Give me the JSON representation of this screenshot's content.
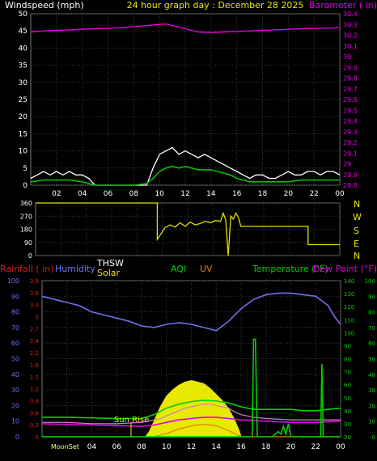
{
  "colors": {
    "background": "#000000",
    "plot_bg": "#000000",
    "grid": "#3a3a3a",
    "frame": "#7a7a7a",
    "wind": "#ffffff",
    "wind_avg": "#00c000",
    "barometer": "#e000e0",
    "direction": "#e0e000",
    "humidity": "#7070f0",
    "rain": "#d02020",
    "thsw": "#ffffff",
    "solar": "#e8e800",
    "aqi": "#00d000",
    "uv": "#e08000",
    "temperature": "#00d000",
    "dewpoint": "#e000e0",
    "sunrise_label": "#e8e800",
    "moon_label": "#ffff80"
  },
  "wind_panel": {
    "left_label": "Windspeed (mph)",
    "title": "24 hour graph day : December 28 2025",
    "right_label": "Barometer ( in)"
  },
  "direction_panel": {
    "compass": [
      "N",
      "W",
      "S",
      "E",
      "N"
    ]
  },
  "lower_panel": {
    "rainfall_label": "Rainfall ( in)",
    "humidity_label": "Humidity",
    "thsw_label": "THSW",
    "solar_label": "Solar",
    "aqi_label": "AQI",
    "uv_label": "UV",
    "temperature_label": "Temperature (°F)",
    "dewpoint_label": "Dew Point (°F)",
    "sunrise_annotation": "Sun Rise",
    "moonset_annotation": "MoonSet"
  },
  "chart_data": [
    {
      "type": "line",
      "name": "wind",
      "title": "24 hour graph day : December 28 2025",
      "xlabel": "",
      "ylabel": "Windspeed (mph)",
      "y2label": "Barometer ( in)",
      "x_ticks": [
        "02",
        "04",
        "06",
        "08",
        "10",
        "12",
        "14",
        "16",
        "18",
        "20",
        "22",
        "00"
      ],
      "x_range": [
        0,
        24
      ],
      "ylim": [
        0,
        50
      ],
      "y_ticks": [
        0,
        5,
        10,
        15,
        20,
        25,
        30,
        35,
        40,
        45,
        50
      ],
      "y2lim": [
        28.8,
        30.4
      ],
      "y2_ticks": [
        "28.8",
        "28.9",
        "29",
        "29.1",
        "29.2",
        "29.3",
        "29.4",
        "29.5",
        "29.6",
        "29.7",
        "29.8",
        "29.9",
        "30",
        "30.1",
        "30.2",
        "30.3",
        "30.4"
      ],
      "grid": true,
      "series": [
        {
          "key": "gust",
          "x": [
            0,
            0.5,
            1,
            1.5,
            2,
            2.5,
            3,
            3.5,
            4,
            4.5,
            5,
            5.5,
            6,
            6.5,
            7,
            7.5,
            8,
            8.5,
            9,
            9.5,
            10,
            10.5,
            11,
            11.5,
            12,
            12.5,
            13,
            13.5,
            14,
            14.5,
            15,
            15.5,
            16,
            16.5,
            17,
            17.5,
            18,
            18.5,
            19,
            19.5,
            20,
            20.5,
            21,
            21.5,
            22,
            22.5,
            23,
            23.5,
            24
          ],
          "values": [
            2,
            3,
            4,
            3,
            4,
            3,
            4,
            3,
            3,
            2,
            0,
            0,
            0,
            0,
            0,
            0,
            0,
            0,
            0,
            5,
            9,
            10,
            11,
            9,
            10,
            9,
            8,
            9,
            8,
            7,
            6,
            5,
            4,
            3,
            2,
            3,
            3,
            2,
            2,
            3,
            4,
            3,
            3,
            4,
            4,
            3,
            4,
            4,
            3
          ]
        },
        {
          "key": "average",
          "x": [
            0,
            1,
            2,
            3,
            4,
            5,
            6,
            7,
            8,
            9,
            9.5,
            10,
            10.5,
            11,
            11.5,
            12,
            12.5,
            13,
            13.5,
            14,
            14.5,
            15,
            15.5,
            16,
            17,
            18,
            19,
            20,
            21,
            22,
            23,
            24
          ],
          "values": [
            1,
            1.5,
            1.5,
            1.5,
            1,
            0,
            0,
            0,
            0,
            0.5,
            2,
            4,
            5,
            5.5,
            5,
            5.5,
            5,
            4.5,
            4.5,
            4.5,
            4,
            3.5,
            3,
            2,
            1,
            1,
            1,
            1,
            1.5,
            1.5,
            1.5,
            1.5
          ]
        },
        {
          "key": "barometer",
          "x": [
            0,
            1,
            2,
            3,
            4,
            5,
            6,
            7,
            8,
            9,
            10,
            10.5,
            11,
            12,
            13,
            14,
            15,
            16,
            17,
            18,
            19,
            20,
            21,
            22,
            23,
            24
          ],
          "values": [
            30.23,
            30.24,
            30.245,
            30.25,
            30.255,
            30.26,
            30.265,
            30.27,
            30.28,
            30.29,
            30.3,
            30.305,
            30.29,
            30.26,
            30.23,
            30.225,
            30.23,
            30.235,
            30.24,
            30.245,
            30.25,
            30.255,
            30.26,
            30.265,
            30.265,
            30.27
          ]
        }
      ]
    },
    {
      "type": "line",
      "name": "direction",
      "x_range": [
        0,
        24
      ],
      "ylim": [
        0,
        360
      ],
      "y_ticks": [
        0,
        90,
        180,
        270,
        360
      ],
      "y_tick_labels": [
        "0",
        "90",
        "180",
        "270",
        "360"
      ],
      "grid": true,
      "series": [
        {
          "key": "direction",
          "x": [
            0,
            9.6,
            9.6,
            10.2,
            10.6,
            11.0,
            11.4,
            11.8,
            12.2,
            12.6,
            13.0,
            13.4,
            13.8,
            14.2,
            14.6,
            14.8,
            15.0,
            15.2,
            15.4,
            15.6,
            15.8,
            16.0,
            16.2,
            21.5,
            21.5,
            24
          ],
          "values": [
            360,
            360,
            110,
            190,
            210,
            195,
            225,
            200,
            230,
            210,
            220,
            235,
            225,
            240,
            235,
            290,
            245,
            0,
            270,
            250,
            290,
            260,
            200,
            200,
            75,
            75
          ]
        }
      ]
    },
    {
      "type": "area",
      "name": "lower",
      "x_ticks": [
        "04",
        "06",
        "08",
        "10",
        "12",
        "14",
        "16",
        "18",
        "20",
        "22",
        "00"
      ],
      "x_range": [
        0,
        24
      ],
      "y_left_outer_lim": [
        0,
        100
      ],
      "y_left_outer_ticks": [
        "0",
        "10",
        "20",
        "30",
        "40",
        "50",
        "60",
        "70",
        "80",
        "90",
        "100"
      ],
      "y_left_inner_lim": [
        0,
        3.9
      ],
      "y_left_inner_ticks": [
        "0",
        "0.3",
        "0.6",
        "0.9",
        "1.2",
        "1.5",
        "1.8",
        "2.1",
        "2.4",
        "2.7",
        "3",
        "3.3",
        "3.6",
        "3.9"
      ],
      "y_right_inner_lim": [
        20,
        140
      ],
      "y_right_inner_ticks": [
        "20",
        "30",
        "40",
        "50",
        "60",
        "70",
        "80",
        "90",
        "100",
        "110",
        "120",
        "130",
        "140"
      ],
      "y_right_outer_lim": [
        0,
        100
      ],
      "y_right_outer_ticks": [
        "0",
        "10",
        "20",
        "30",
        "40",
        "50",
        "60",
        "70",
        "80",
        "90",
        "100"
      ],
      "grid": true,
      "series": [
        {
          "key": "humidity",
          "x": [
            0,
            1,
            2,
            3,
            4,
            5,
            6,
            7,
            8,
            9,
            10,
            11,
            12,
            13,
            14,
            15,
            16,
            17,
            18,
            19,
            20,
            21,
            22,
            23,
            23.5,
            24
          ],
          "values": [
            90,
            88,
            86,
            84,
            80,
            78,
            76,
            74,
            71,
            70,
            72,
            73,
            72,
            70,
            68,
            74,
            82,
            88,
            91,
            92,
            92,
            91,
            90,
            84,
            77,
            72
          ]
        },
        {
          "key": "solar",
          "x": [
            0,
            8.3,
            8.6,
            9,
            9.5,
            10,
            10.5,
            11,
            11.5,
            12,
            12.5,
            13,
            13.5,
            14,
            14.5,
            15,
            15.4,
            15.8,
            16,
            24
          ],
          "values": [
            0,
            0,
            3,
            10,
            19,
            26,
            30,
            33,
            35,
            36,
            35,
            34,
            31,
            27,
            23,
            18,
            12,
            5,
            0,
            0
          ]
        },
        {
          "key": "temperature",
          "x": [
            0,
            2,
            4,
            6,
            7,
            8,
            9,
            10,
            11,
            12,
            13,
            14,
            15,
            16,
            17,
            18,
            19,
            20,
            21,
            22,
            23,
            24
          ],
          "values": [
            35,
            35,
            34.5,
            34,
            34,
            34,
            37,
            42,
            45,
            47,
            48,
            47.5,
            46,
            43,
            41,
            41,
            41,
            41,
            40,
            40,
            41,
            42
          ]
        },
        {
          "key": "thsw",
          "x": [
            0,
            2,
            4,
            6,
            8,
            8.5,
            9,
            9.5,
            10,
            10.5,
            11,
            11.5,
            12,
            12.5,
            13,
            13.5,
            14,
            14.5,
            15,
            15.5,
            16,
            17,
            18,
            20,
            22,
            24
          ],
          "values": [
            31,
            31,
            30,
            30,
            31,
            32,
            33,
            34,
            36,
            38,
            40,
            42,
            43,
            44,
            45,
            45,
            44,
            43,
            42,
            39,
            37,
            35,
            34,
            33,
            33,
            33
          ]
        },
        {
          "key": "dewpoint",
          "x": [
            0,
            4,
            8,
            9,
            10,
            11,
            12,
            13,
            14,
            15,
            16,
            18,
            20,
            22,
            24
          ],
          "values": [
            30,
            29,
            28,
            29,
            31,
            33,
            34,
            35,
            35,
            34,
            33,
            32,
            31,
            31,
            32
          ]
        },
        {
          "key": "uv",
          "x": [
            0,
            9,
            10,
            11,
            12,
            13,
            14,
            15,
            16,
            24
          ],
          "values": [
            0,
            0,
            2,
            5,
            7,
            8,
            7,
            4,
            0,
            0
          ]
        },
        {
          "key": "aqi",
          "x": [
            0,
            16.9,
            17.0,
            17.15,
            17.3,
            17.5,
            18.5,
            19.0,
            19.2,
            19.4,
            19.6,
            19.8,
            20.0,
            22.4,
            22.5,
            22.6,
            24
          ],
          "values": [
            20,
            20,
            95,
            95,
            20,
            20,
            20,
            24,
            22,
            28,
            22,
            30,
            20,
            20,
            76,
            20,
            20
          ]
        }
      ]
    }
  ]
}
